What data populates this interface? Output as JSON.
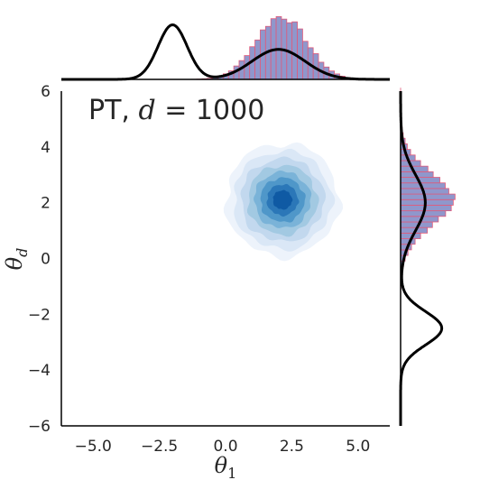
{
  "chart_data": {
    "type": "joint-kde",
    "annotation": "PT,  d = 1000",
    "annotation_parts": {
      "prefix": "PT,  ",
      "var": "d",
      "rest": " = 1000"
    },
    "xlabel": "θ₁",
    "ylabel": "θ_d",
    "xlabel_parts": {
      "base": "θ",
      "sub": "1"
    },
    "ylabel_parts": {
      "base": "θ",
      "sub": "d"
    },
    "xlim": [
      -6.2,
      6.2
    ],
    "ylim": [
      -6.0,
      6.0
    ],
    "xticks": [
      -5.0,
      -2.5,
      0.0,
      2.5,
      5.0
    ],
    "xtick_labels": [
      "−5.0",
      "−2.5",
      "0.0",
      "2.5",
      "5.0"
    ],
    "yticks": [
      -6,
      -4,
      -2,
      0,
      2,
      4,
      6
    ],
    "ytick_labels": [
      "−6",
      "−4",
      "−2",
      "0",
      "2",
      "4",
      "6"
    ],
    "grid": false,
    "joint_kde": {
      "center": [
        2.15,
        2.1
      ],
      "std": [
        0.95,
        0.95
      ],
      "levels": 8,
      "colors": [
        "#edf3fb",
        "#dae7f6",
        "#c2d8ee",
        "#a2c9e2",
        "#7ab3d8",
        "#4f97c9",
        "#2b77b8",
        "#0f5aa4"
      ]
    },
    "marginal_x": {
      "histogram": {
        "mean": 2.1,
        "std": 0.95,
        "bin_width": 0.2,
        "color": "#8f97cc",
        "edge_color": "#e05a7a"
      },
      "reference_density": {
        "color": "#000000",
        "components": [
          {
            "weight": 0.5,
            "mean": -2.0,
            "std": 0.55
          },
          {
            "weight": 0.5,
            "mean": 2.0,
            "std": 1.0
          }
        ]
      }
    },
    "marginal_y": {
      "histogram": {
        "mean": 2.1,
        "std": 0.95,
        "bin_width": 0.2,
        "color": "#8f97cc",
        "edge_color": "#e05a7a"
      },
      "reference_density": {
        "color": "#000000",
        "components": [
          {
            "weight": 0.5,
            "mean": 2.0,
            "std": 1.0
          },
          {
            "weight": 0.5,
            "mean": -2.5,
            "std": 0.6
          }
        ]
      }
    }
  }
}
